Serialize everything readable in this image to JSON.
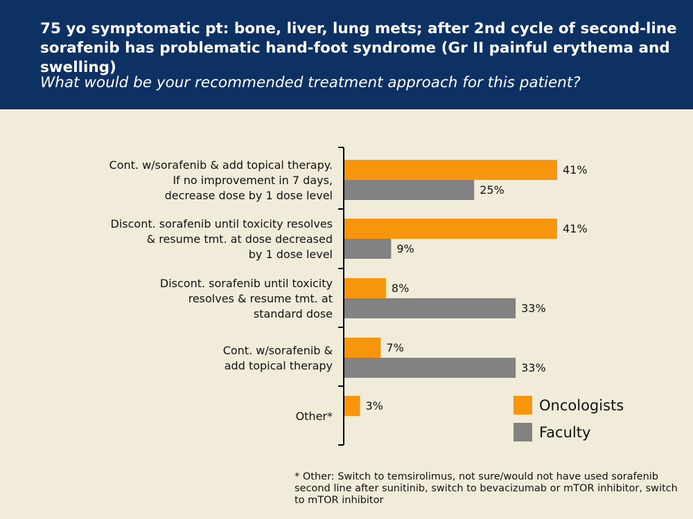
{
  "header": {
    "title": "75 yo symptomatic pt: bone, liver, lung mets; after 2nd cycle of second-line sorafenib has problematic hand-foot syndrome (Gr II painful erythema and swelling)",
    "question": "What would be your recommended treatment approach for this patient?"
  },
  "chart_data": {
    "type": "bar",
    "orientation": "horizontal",
    "categories": [
      [
        "Cont. w/sorafenib & add topical therapy.",
        "If no improvement in 7 days,",
        "decrease dose by 1 dose level"
      ],
      [
        "Discont. sorafenib until toxicity resolves",
        "& resume tmt. at dose decreased",
        "by 1 dose level"
      ],
      [
        "Discont. sorafenib until toxicity",
        "resolves & resume tmt. at",
        "standard dose"
      ],
      [
        "Cont. w/sorafenib &",
        "add topical therapy"
      ],
      [
        "Other*"
      ]
    ],
    "series": [
      {
        "name": "Oncologists",
        "color": "#f7960d",
        "values": [
          41,
          41,
          8,
          7,
          3
        ],
        "labels": [
          "41%",
          "41%",
          "8%",
          "7%",
          "3%"
        ]
      },
      {
        "name": "Faculty",
        "color": "#828282",
        "values": [
          25,
          9,
          33,
          33,
          null
        ],
        "labels": [
          "25%",
          "9%",
          "33%",
          "33%",
          ""
        ]
      }
    ],
    "xlim": [
      0,
      45
    ],
    "legend_position": "bottom-right"
  },
  "footnote": "* Other: Switch to temsirolimus, not sure/would not have used sorafenib second line after sunitinib, switch to bevacizumab or mTOR inhibitor, switch to mTOR inhibitor"
}
